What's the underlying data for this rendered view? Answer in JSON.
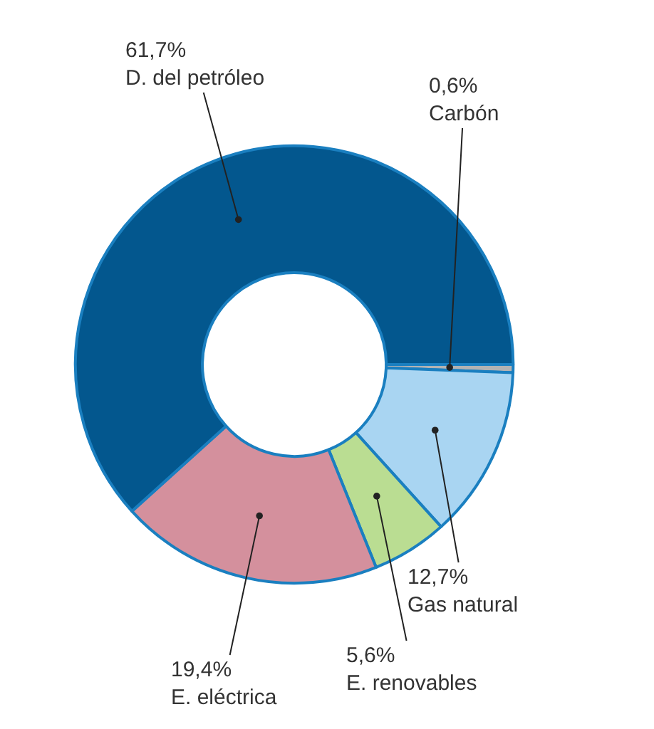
{
  "chart_data": {
    "type": "donut",
    "categories": [
      "Carbón",
      "Gas natural",
      "E. renovables",
      "E. eléctrica",
      "D. del petróleo"
    ],
    "values": [
      0.6,
      12.7,
      5.6,
      19.4,
      61.7
    ],
    "colors": [
      "#b3b3b3",
      "#a9d5f2",
      "#badd92",
      "#d4909d",
      "#03578e"
    ],
    "value_labels": [
      "0,6%",
      "12,7%",
      "5,6%",
      "19,4%",
      "61,7%"
    ],
    "legend": false
  }
}
